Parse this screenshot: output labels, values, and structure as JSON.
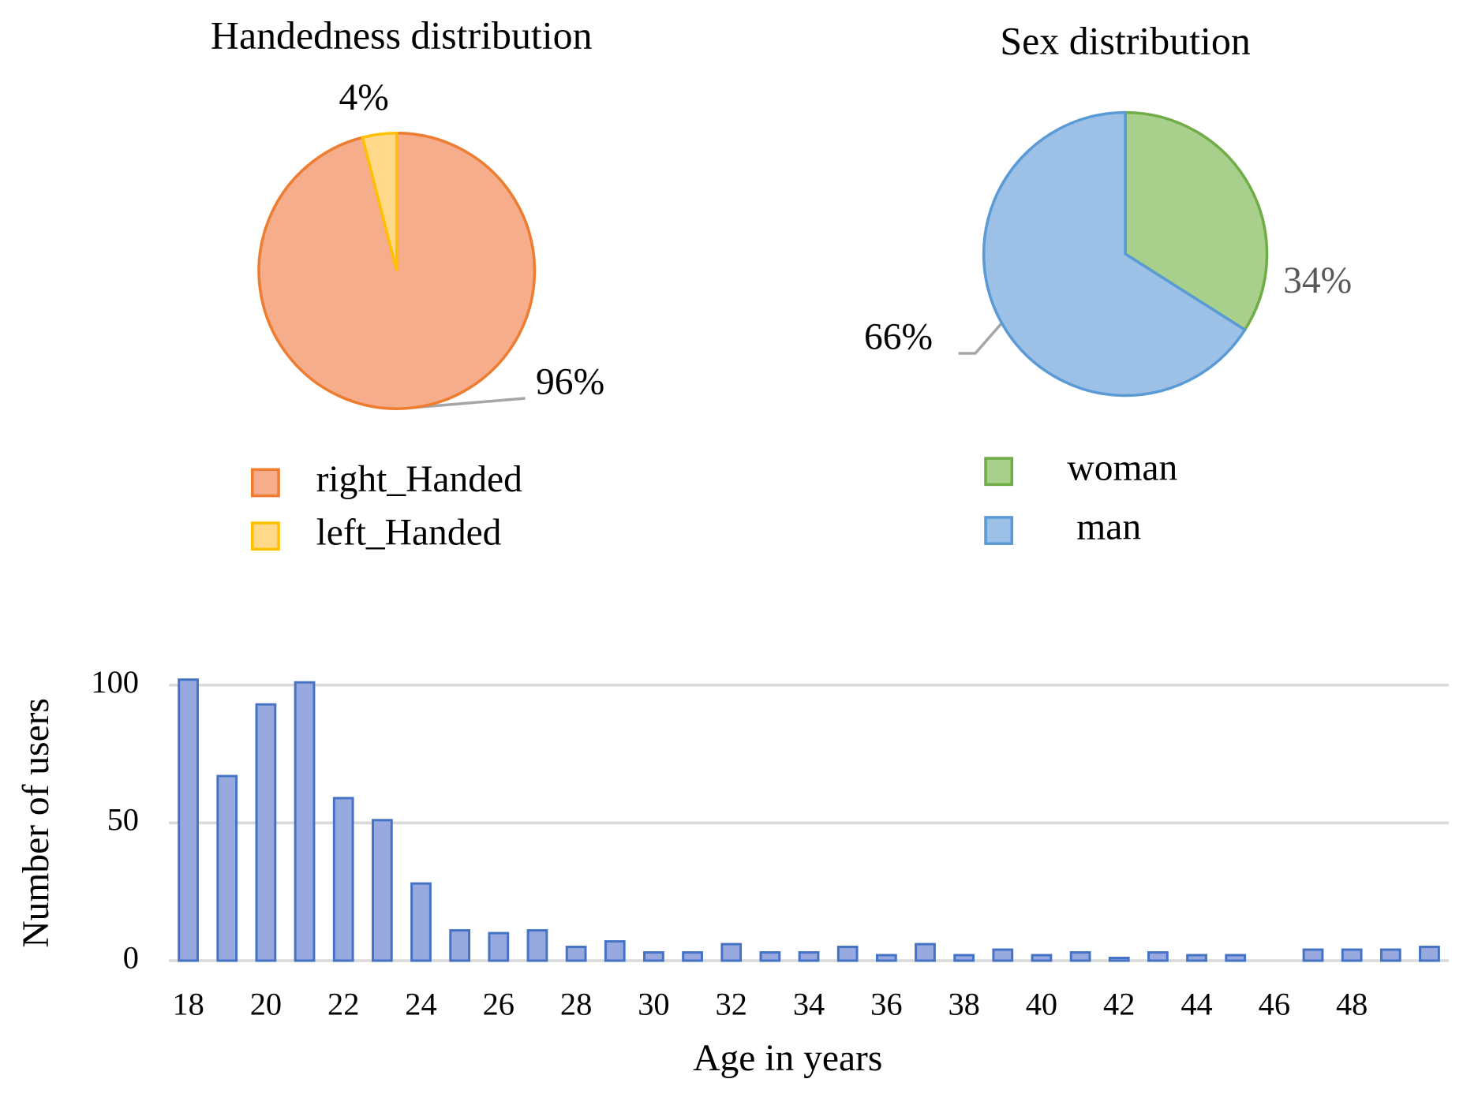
{
  "chart_data": [
    {
      "type": "pie",
      "title": "Handedness distribution",
      "categories": [
        "right_Handed",
        "left_Handed"
      ],
      "values": [
        96,
        4
      ],
      "value_labels": [
        "96%",
        "4%"
      ],
      "colors": [
        "#f5ad8c",
        "#ffd88a"
      ],
      "stroke_colors": [
        "#ed7d31",
        "#ffc000"
      ],
      "legend": "bottom"
    },
    {
      "type": "pie",
      "title": "Sex distribution",
      "categories": [
        "woman",
        "man"
      ],
      "values": [
        34,
        66
      ],
      "value_labels": [
        "34%",
        "66%"
      ],
      "colors": [
        "#a8d08c",
        "#9dc0e6"
      ],
      "stroke_colors": [
        "#70ad47",
        "#5b9bd5"
      ],
      "legend": "bottom"
    },
    {
      "type": "bar",
      "x_label": "Age in years",
      "y_label": "Number of users",
      "categories": [
        18,
        null,
        20,
        null,
        22,
        null,
        24,
        null,
        26,
        null,
        28,
        null,
        30,
        null,
        32,
        null,
        34,
        null,
        36,
        null,
        38,
        null,
        40,
        null,
        42,
        null,
        44,
        null,
        46,
        null,
        48,
        null,
        null
      ],
      "values": [
        102,
        67,
        93,
        101,
        59,
        51,
        28,
        11,
        10,
        11,
        5,
        7,
        3,
        3,
        6,
        3,
        3,
        5,
        2,
        6,
        2,
        4,
        2,
        3,
        1,
        3,
        2,
        2,
        0,
        4,
        4,
        4,
        5
      ],
      "color": "#98a9df",
      "stroke_color": "#4472c4",
      "ylim": [
        0,
        110
      ],
      "yticks": [
        0,
        50,
        100
      ],
      "grid": true
    }
  ]
}
